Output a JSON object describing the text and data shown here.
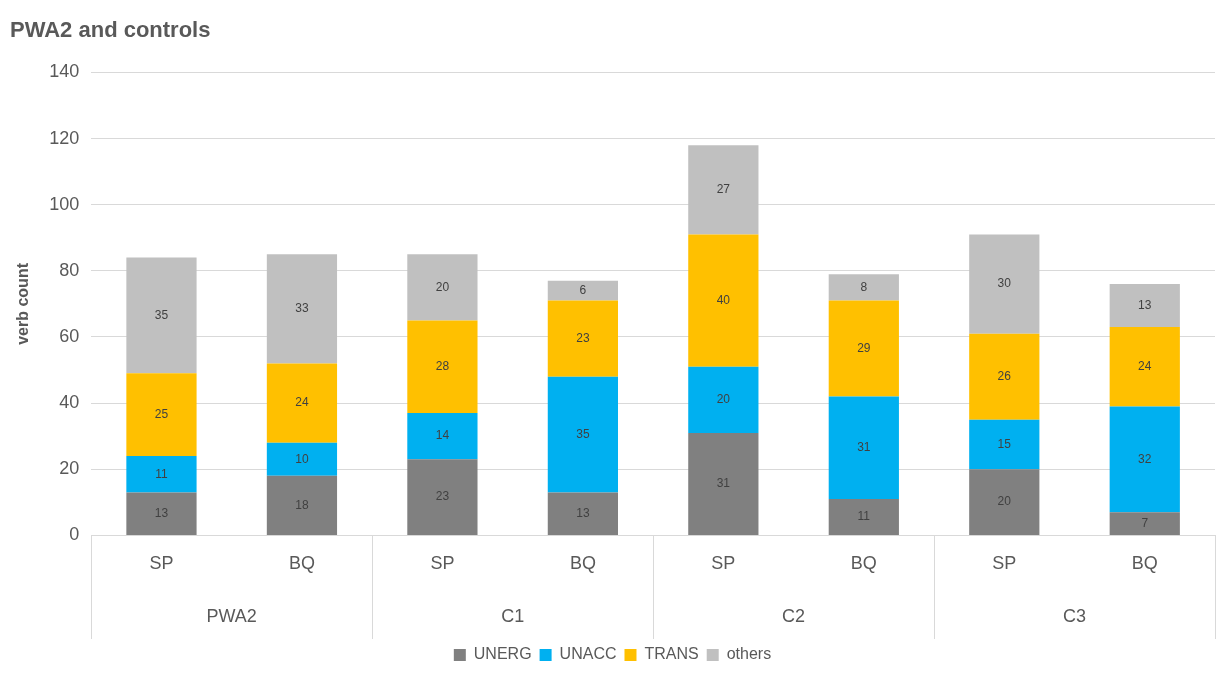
{
  "chart_data": {
    "type": "bar",
    "title": "PWA2 and controls",
    "ylabel": "verb count",
    "categories": [
      "SP",
      "BQ",
      "SP",
      "BQ",
      "SP",
      "BQ",
      "SP",
      "BQ"
    ],
    "annotations": [
      "PWA2",
      "C1",
      "C2",
      "C3"
    ],
    "stacked": true,
    "series": [
      {
        "name": "UNERG",
        "color": "#808080",
        "values": [
          13,
          18,
          23,
          13,
          31,
          11,
          20,
          7
        ]
      },
      {
        "name": "UNACC",
        "color": "#00b0f0",
        "values": [
          11,
          10,
          14,
          35,
          20,
          31,
          15,
          32
        ]
      },
      {
        "name": "TRANS",
        "color": "#ffc000",
        "values": [
          25,
          24,
          28,
          23,
          40,
          29,
          26,
          24
        ]
      },
      {
        "name": "others",
        "color": "#c0c0c0",
        "values": [
          35,
          33,
          20,
          6,
          27,
          8,
          30,
          13
        ]
      }
    ],
    "ylim": [
      0,
      140
    ],
    "yticks": [
      0,
      20,
      40,
      60,
      80,
      100,
      120,
      140
    ],
    "grid": "y",
    "legend": "bottom",
    "data_labels": true
  }
}
